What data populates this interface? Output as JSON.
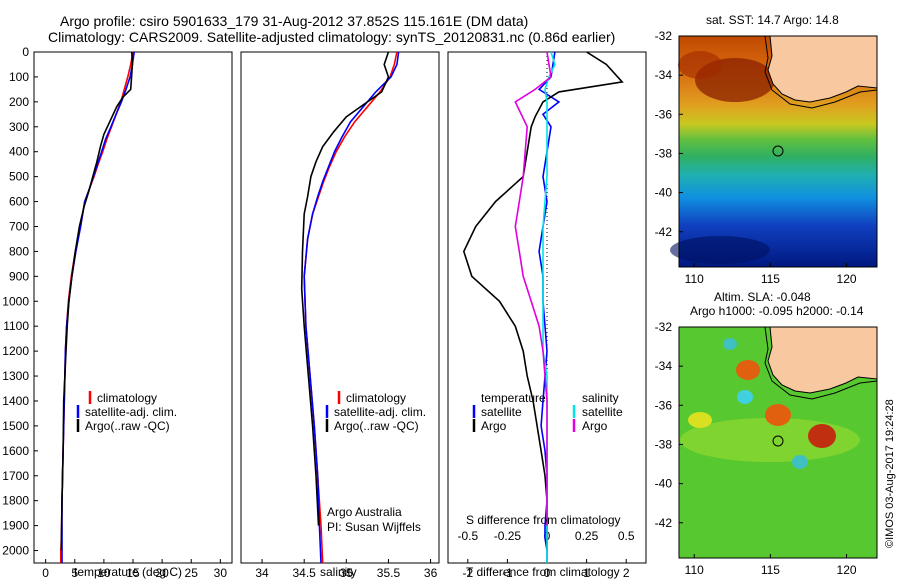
{
  "header": {
    "title_line1": "Argo profile: csiro 5901633_179 31-Aug-2012 37.852S 115.161E (DM data)",
    "title_line2": "Climatology: CARS2009. Satellite-adjusted climatology: synTS_20120831.nc (0.86d earlier)"
  },
  "colors": {
    "climatology": "#ff0000",
    "satellite": "#0000ff",
    "argo": "#000000",
    "sal_satellite": "#00e5e5",
    "sal_argo": "#e000e0",
    "land": "#f8c8a0"
  },
  "credits": {
    "org": "Argo Australia",
    "pi": "PI: Susan Wijffels",
    "timestamp": "©IMOS 03-Aug-2017 19:24:28"
  },
  "chart_data": [
    {
      "type": "line",
      "xlabel": "temperature (deg C)",
      "xlim": [
        -2,
        32
      ],
      "xticks": [
        0,
        5,
        10,
        15,
        20,
        25,
        30
      ],
      "ylim": [
        0,
        2050
      ],
      "yticks": [
        0,
        100,
        200,
        300,
        400,
        500,
        600,
        700,
        800,
        900,
        1000,
        1100,
        1200,
        1300,
        1400,
        1500,
        1600,
        1700,
        1800,
        1900,
        2000
      ],
      "legend": [
        "climatology",
        "satellite-adj. clim.",
        "Argo(..raw -QC)"
      ],
      "series": [
        {
          "name": "climatology",
          "color": "#ff0000",
          "x": [
            15.0,
            14.6,
            14.1,
            13.5,
            12.9,
            12.1,
            11.3,
            10.5,
            9.8,
            9.0,
            8.3,
            7.5,
            6.7,
            6.0,
            5.1,
            4.4,
            3.9,
            3.6,
            3.4,
            3.2,
            3.0,
            2.8,
            2.7,
            2.6,
            2.6
          ],
          "y": [
            0,
            50,
            100,
            150,
            200,
            250,
            300,
            350,
            400,
            450,
            500,
            550,
            600,
            700,
            800,
            900,
            1000,
            1100,
            1200,
            1400,
            1600,
            1800,
            1950,
            2000,
            2050
          ]
        },
        {
          "name": "satellite-adj. clim.",
          "color": "#0000ff",
          "x": [
            15.2,
            14.9,
            14.5,
            13.8,
            13.0,
            12.1,
            11.2,
            10.3,
            9.6,
            8.9,
            8.2,
            7.5,
            6.7,
            6.0,
            5.2,
            4.5,
            4.0,
            3.6,
            3.4,
            3.2,
            3.0,
            2.8,
            2.8,
            2.8,
            2.8
          ],
          "y": [
            0,
            50,
            100,
            150,
            200,
            250,
            300,
            350,
            400,
            450,
            500,
            550,
            600,
            700,
            800,
            900,
            1000,
            1100,
            1200,
            1400,
            1600,
            1800,
            1950,
            2000,
            2050
          ]
        },
        {
          "name": "Argo(..raw -QC)",
          "color": "#000000",
          "x": [
            14.8,
            14.9,
            14.6,
            13.3,
            12.2,
            11.0,
            10.0,
            9.4,
            8.8,
            8.1,
            7.4,
            6.6,
            5.8,
            5.1,
            4.5,
            4.0,
            3.7,
            3.5,
            3.3,
            3.1,
            3.0,
            2.8,
            2.7,
            2.7
          ],
          "y": [
            0,
            50,
            150,
            180,
            220,
            280,
            330,
            380,
            440,
            500,
            560,
            620,
            700,
            800,
            900,
            1000,
            1100,
            1200,
            1300,
            1400,
            1600,
            1800,
            1950,
            2000
          ]
        }
      ]
    },
    {
      "type": "line",
      "xlabel": "salinity",
      "xlim": [
        33.75,
        36.1
      ],
      "xticks": [
        34,
        34.5,
        35,
        35.5,
        36
      ],
      "ylim": [
        0,
        2050
      ],
      "legend": [
        "climatology",
        "satellite-adj. clim.",
        "Argo(..raw -QC)"
      ],
      "series": [
        {
          "name": "climatology",
          "color": "#ff0000",
          "x": [
            35.6,
            35.57,
            35.52,
            35.4,
            35.25,
            35.1,
            34.98,
            34.88,
            34.8,
            34.73,
            34.67,
            34.6,
            34.54,
            34.5,
            34.52,
            34.57,
            34.62,
            34.66,
            34.7,
            34.72
          ],
          "y": [
            0,
            50,
            100,
            160,
            220,
            280,
            340,
            400,
            460,
            520,
            580,
            650,
            750,
            900,
            1100,
            1300,
            1500,
            1700,
            1900,
            2050
          ]
        },
        {
          "name": "satellite-adj. clim.",
          "color": "#0000ff",
          "x": [
            35.62,
            35.6,
            35.53,
            35.35,
            35.2,
            35.05,
            34.95,
            34.86,
            34.79,
            34.72,
            34.66,
            34.6,
            34.54,
            34.5,
            34.52,
            34.57,
            34.62,
            34.66,
            34.68,
            34.7
          ],
          "y": [
            0,
            50,
            100,
            160,
            220,
            280,
            340,
            400,
            460,
            520,
            580,
            650,
            750,
            900,
            1100,
            1300,
            1500,
            1700,
            1900,
            2050
          ]
        },
        {
          "name": "Argo(..raw -QC)",
          "color": "#000000",
          "x": [
            35.5,
            35.45,
            35.5,
            35.42,
            35.25,
            35.0,
            34.85,
            34.72,
            34.64,
            34.58,
            34.54,
            34.5,
            34.48,
            34.47,
            34.5,
            34.55,
            34.6,
            34.64,
            34.67
          ],
          "y": [
            0,
            50,
            100,
            160,
            200,
            260,
            320,
            380,
            440,
            500,
            580,
            650,
            800,
            950,
            1100,
            1300,
            1500,
            1700,
            1900
          ]
        }
      ]
    },
    {
      "type": "line",
      "xlabel": "T difference from climatology",
      "title_top": "S difference from climatology",
      "xlim": [
        -2.5,
        2.5
      ],
      "xticks": [
        -2,
        -1,
        0,
        1,
        2
      ],
      "xtick_labels_top": [
        "-0.5",
        "-0.25",
        "0",
        "0.25",
        "0.5"
      ],
      "ylim": [
        0,
        2050
      ],
      "legend_temperature": {
        "title": "temperature",
        "items": [
          "satellite",
          "Argo"
        ]
      },
      "legend_salinity": {
        "title": "salinity",
        "items": [
          "satellite",
          "Argo"
        ]
      },
      "series": [
        {
          "name": "temperature satellite",
          "color": "#0000ff",
          "x": [
            0.2,
            0.1,
            -0.2,
            0.3,
            -0.1,
            0.1,
            0.0,
            -0.1,
            0.0,
            -0.1,
            -0.2,
            -0.1,
            -0.1,
            -0.05,
            0.0,
            -0.05,
            -0.1,
            -0.15,
            -0.05,
            0.0,
            0.0,
            -0.05,
            -0.05,
            0.0,
            0.0
          ],
          "y": [
            0,
            100,
            150,
            200,
            250,
            300,
            400,
            500,
            600,
            700,
            800,
            900,
            1000,
            1100,
            1200,
            1300,
            1400,
            1500,
            1600,
            1700,
            1800,
            1900,
            1950,
            2000,
            2050
          ]
        },
        {
          "name": "temperature Argo",
          "color": "#000000",
          "x": [
            1.0,
            1.5,
            1.9,
            0.3,
            -0.1,
            -0.3,
            -0.4,
            -0.6,
            -1.3,
            -1.8,
            -2.1,
            -1.9,
            -1.2,
            -0.8,
            -0.6,
            -0.5,
            -0.35,
            -0.25,
            -0.15,
            -0.05,
            0.0,
            0.0,
            0.0,
            0.0
          ],
          "y": [
            0,
            50,
            120,
            160,
            200,
            260,
            300,
            500,
            600,
            700,
            800,
            900,
            1000,
            1100,
            1200,
            1300,
            1400,
            1500,
            1600,
            1700,
            1800,
            1900,
            1950,
            2000
          ]
        },
        {
          "name": "salinity satellite",
          "color": "#00e5e5",
          "x": [
            0.1,
            0.2,
            0.05,
            -0.05,
            0.0,
            0.0,
            0.0,
            -0.1,
            -0.1,
            -0.1,
            -0.1,
            0.0,
            0.0,
            0.0,
            0.0,
            0.0,
            0.0,
            0.0
          ],
          "y": [
            0,
            50,
            100,
            150,
            200,
            300,
            500,
            700,
            900,
            1100,
            1200,
            1300,
            1400,
            1500,
            1600,
            1800,
            1950,
            2050
          ]
        },
        {
          "name": "salinity Argo",
          "color": "#e000e0",
          "x": [
            0.0,
            0.1,
            -0.3,
            -0.8,
            -0.5,
            -0.6,
            -0.7,
            -0.8,
            -0.7,
            -0.6,
            -0.4,
            -0.2,
            -0.1,
            0.0,
            0.0,
            0.0,
            0.0
          ],
          "y": [
            0,
            100,
            150,
            200,
            300,
            500,
            600,
            700,
            800,
            900,
            1000,
            1100,
            1200,
            1400,
            1600,
            1800,
            1900
          ]
        }
      ]
    },
    {
      "type": "heatmap",
      "title": "sat. SST: 14.7 Argo: 14.8",
      "xlim": [
        109,
        122
      ],
      "ylim": [
        -43.8,
        -32
      ],
      "xticks": [
        110,
        115,
        120
      ],
      "yticks": [
        -32,
        -34,
        -36,
        -38,
        -40,
        -42
      ],
      "marker": {
        "lon": 115.161,
        "lat": -37.852
      }
    },
    {
      "type": "heatmap",
      "title_line1": "Altim. SLA: -0.048",
      "title_line2": "Argo h1000: -0.095 h2000: -0.14",
      "xlim": [
        109,
        122
      ],
      "ylim": [
        -43.8,
        -32
      ],
      "xticks": [
        110,
        115,
        120
      ],
      "yticks": [
        -32,
        -34,
        -36,
        -38,
        -40,
        -42
      ],
      "marker": {
        "lon": 115.161,
        "lat": -37.852
      }
    }
  ]
}
